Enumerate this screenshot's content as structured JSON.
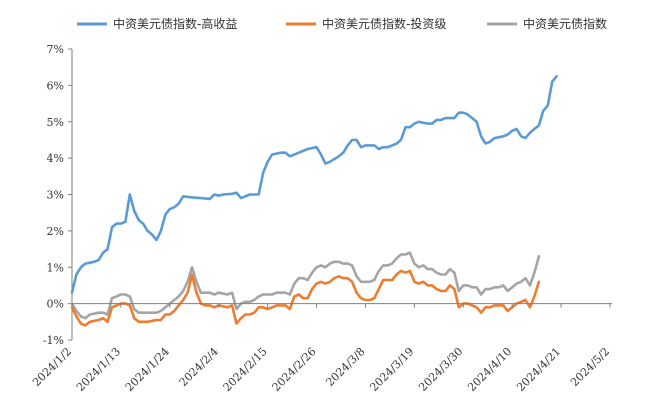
{
  "chart_data": {
    "type": "line",
    "title": "",
    "xlabel": "",
    "ylabel": "",
    "ylim": [
      -1,
      7
    ],
    "y_ticks": [
      -1,
      0,
      1,
      2,
      3,
      4,
      5,
      6,
      7
    ],
    "y_tick_labels": [
      "-1%",
      "0%",
      "1%",
      "2%",
      "3%",
      "4%",
      "5%",
      "6%",
      "7%"
    ],
    "x_tick_labels": [
      "2024/1/2",
      "2024/1/13",
      "2024/1/24",
      "2024/2/4",
      "2024/2/15",
      "2024/2/26",
      "2024/3/8",
      "2024/3/19",
      "2024/3/30",
      "2024/4/10",
      "2024/4/21",
      "2024/5/2"
    ],
    "x_range_days": [
      0,
      121
    ],
    "grid": false,
    "legend_position": "top",
    "series": [
      {
        "name": "中资美元债指数-高收益",
        "color": "#5b9bd5",
        "points": [
          [
            0,
            0.3
          ],
          [
            1,
            0.8
          ],
          [
            2,
            1.0
          ],
          [
            3,
            1.1
          ],
          [
            5,
            1.15
          ],
          [
            6,
            1.2
          ],
          [
            7,
            1.4
          ],
          [
            8,
            1.5
          ],
          [
            9,
            2.1
          ],
          [
            10,
            2.2
          ],
          [
            11,
            2.2
          ],
          [
            12,
            2.25
          ],
          [
            13,
            3.0
          ],
          [
            14,
            2.55
          ],
          [
            15,
            2.3
          ],
          [
            16,
            2.2
          ],
          [
            17,
            2.0
          ],
          [
            18,
            1.9
          ],
          [
            19,
            1.75
          ],
          [
            20,
            2.0
          ],
          [
            21,
            2.45
          ],
          [
            22,
            2.6
          ],
          [
            23,
            2.65
          ],
          [
            24,
            2.75
          ],
          [
            25,
            2.95
          ],
          [
            27,
            2.92
          ],
          [
            29,
            2.9
          ],
          [
            31,
            2.88
          ],
          [
            32,
            3.0
          ],
          [
            33,
            2.97
          ],
          [
            34,
            3.0
          ],
          [
            36,
            3.02
          ],
          [
            37,
            3.05
          ],
          [
            38,
            2.9
          ],
          [
            39,
            2.95
          ],
          [
            40,
            3.0
          ],
          [
            42,
            3.0
          ],
          [
            43,
            3.6
          ],
          [
            44,
            3.9
          ],
          [
            45,
            4.1
          ],
          [
            47,
            4.15
          ],
          [
            48,
            4.15
          ],
          [
            49,
            4.05
          ],
          [
            51,
            4.15
          ],
          [
            53,
            4.25
          ],
          [
            55,
            4.3
          ],
          [
            56,
            4.1
          ],
          [
            57,
            3.85
          ],
          [
            58,
            3.9
          ],
          [
            60,
            4.05
          ],
          [
            61,
            4.15
          ],
          [
            62,
            4.35
          ],
          [
            63,
            4.5
          ],
          [
            64,
            4.5
          ],
          [
            65,
            4.3
          ],
          [
            66,
            4.35
          ],
          [
            68,
            4.35
          ],
          [
            69,
            4.25
          ],
          [
            70,
            4.3
          ],
          [
            71,
            4.3
          ],
          [
            72,
            4.35
          ],
          [
            73,
            4.4
          ],
          [
            74,
            4.5
          ],
          [
            75,
            4.85
          ],
          [
            76,
            4.85
          ],
          [
            77,
            4.95
          ],
          [
            78,
            5.0
          ],
          [
            80,
            4.95
          ],
          [
            81,
            4.95
          ],
          [
            82,
            5.05
          ],
          [
            83,
            5.05
          ],
          [
            84,
            5.1
          ],
          [
            86,
            5.1
          ],
          [
            87,
            5.25
          ],
          [
            88,
            5.25
          ],
          [
            89,
            5.2
          ],
          [
            90,
            5.1
          ],
          [
            91,
            5.0
          ],
          [
            92,
            4.6
          ],
          [
            93,
            4.4
          ],
          [
            94,
            4.45
          ],
          [
            95,
            4.55
          ],
          [
            97,
            4.6
          ],
          [
            98,
            4.65
          ],
          [
            99,
            4.75
          ],
          [
            100,
            4.8
          ],
          [
            101,
            4.6
          ],
          [
            102,
            4.55
          ],
          [
            103,
            4.7
          ],
          [
            104,
            4.8
          ],
          [
            105,
            4.9
          ],
          [
            106,
            5.3
          ],
          [
            107,
            5.45
          ],
          [
            108,
            6.1
          ],
          [
            109,
            6.25
          ]
        ]
      },
      {
        "name": "中资美元债指数-投资级",
        "color": "#ed7d31",
        "points": [
          [
            0,
            -0.1
          ],
          [
            1,
            -0.35
          ],
          [
            2,
            -0.55
          ],
          [
            3,
            -0.6
          ],
          [
            4,
            -0.5
          ],
          [
            6,
            -0.45
          ],
          [
            7,
            -0.4
          ],
          [
            8,
            -0.5
          ],
          [
            9,
            -0.1
          ],
          [
            10,
            -0.05
          ],
          [
            11,
            0.0
          ],
          [
            12,
            0.0
          ],
          [
            13,
            -0.05
          ],
          [
            14,
            -0.4
          ],
          [
            15,
            -0.5
          ],
          [
            17,
            -0.5
          ],
          [
            19,
            -0.45
          ],
          [
            20,
            -0.45
          ],
          [
            21,
            -0.3
          ],
          [
            22,
            -0.3
          ],
          [
            23,
            -0.2
          ],
          [
            24,
            -0.05
          ],
          [
            25,
            0.1
          ],
          [
            26,
            0.3
          ],
          [
            27,
            0.8
          ],
          [
            28,
            0.3
          ],
          [
            29,
            0.0
          ],
          [
            30,
            -0.05
          ],
          [
            31,
            -0.05
          ],
          [
            32,
            -0.1
          ],
          [
            33,
            -0.05
          ],
          [
            35,
            -0.1
          ],
          [
            36,
            -0.05
          ],
          [
            37,
            -0.55
          ],
          [
            38,
            -0.4
          ],
          [
            39,
            -0.3
          ],
          [
            40,
            -0.3
          ],
          [
            41,
            -0.25
          ],
          [
            42,
            -0.1
          ],
          [
            43,
            -0.1
          ],
          [
            44,
            -0.15
          ],
          [
            45,
            -0.1
          ],
          [
            46,
            -0.05
          ],
          [
            47,
            -0.05
          ],
          [
            48,
            -0.05
          ],
          [
            49,
            -0.15
          ],
          [
            50,
            0.2
          ],
          [
            51,
            0.25
          ],
          [
            52,
            0.15
          ],
          [
            53,
            0.15
          ],
          [
            54,
            0.4
          ],
          [
            55,
            0.55
          ],
          [
            56,
            0.6
          ],
          [
            57,
            0.55
          ],
          [
            58,
            0.6
          ],
          [
            59,
            0.7
          ],
          [
            60,
            0.75
          ],
          [
            61,
            0.7
          ],
          [
            62,
            0.7
          ],
          [
            63,
            0.6
          ],
          [
            64,
            0.3
          ],
          [
            65,
            0.15
          ],
          [
            66,
            0.1
          ],
          [
            67,
            0.1
          ],
          [
            68,
            0.15
          ],
          [
            69,
            0.4
          ],
          [
            70,
            0.65
          ],
          [
            71,
            0.65
          ],
          [
            72,
            0.65
          ],
          [
            73,
            0.8
          ],
          [
            74,
            0.9
          ],
          [
            75,
            0.85
          ],
          [
            76,
            0.9
          ],
          [
            77,
            0.6
          ],
          [
            78,
            0.55
          ],
          [
            79,
            0.6
          ],
          [
            80,
            0.5
          ],
          [
            81,
            0.5
          ],
          [
            82,
            0.4
          ],
          [
            83,
            0.35
          ],
          [
            84,
            0.35
          ],
          [
            85,
            0.5
          ],
          [
            86,
            0.4
          ],
          [
            87,
            -0.1
          ],
          [
            88,
            0.0
          ],
          [
            89,
            0.0
          ],
          [
            90,
            -0.05
          ],
          [
            91,
            -0.1
          ],
          [
            92,
            -0.25
          ],
          [
            93,
            -0.1
          ],
          [
            94,
            -0.1
          ],
          [
            95,
            -0.05
          ],
          [
            96,
            -0.05
          ],
          [
            97,
            -0.05
          ],
          [
            98,
            -0.2
          ],
          [
            99,
            -0.1
          ],
          [
            100,
            0.0
          ],
          [
            101,
            0.05
          ],
          [
            102,
            0.1
          ],
          [
            103,
            -0.1
          ],
          [
            104,
            0.2
          ],
          [
            105,
            0.6
          ]
        ]
      },
      {
        "name": "中资美元债指数",
        "color": "#a5a5a5",
        "points": [
          [
            0,
            0.0
          ],
          [
            1,
            -0.2
          ],
          [
            2,
            -0.35
          ],
          [
            3,
            -0.4
          ],
          [
            4,
            -0.3
          ],
          [
            6,
            -0.25
          ],
          [
            7,
            -0.25
          ],
          [
            8,
            -0.3
          ],
          [
            9,
            0.15
          ],
          [
            10,
            0.2
          ],
          [
            11,
            0.25
          ],
          [
            12,
            0.25
          ],
          [
            13,
            0.2
          ],
          [
            14,
            -0.15
          ],
          [
            15,
            -0.25
          ],
          [
            17,
            -0.25
          ],
          [
            19,
            -0.25
          ],
          [
            20,
            -0.2
          ],
          [
            21,
            -0.1
          ],
          [
            22,
            0.0
          ],
          [
            23,
            0.1
          ],
          [
            24,
            0.2
          ],
          [
            25,
            0.35
          ],
          [
            26,
            0.6
          ],
          [
            27,
            1.0
          ],
          [
            28,
            0.6
          ],
          [
            29,
            0.3
          ],
          [
            30,
            0.3
          ],
          [
            31,
            0.3
          ],
          [
            32,
            0.25
          ],
          [
            33,
            0.3
          ],
          [
            35,
            0.25
          ],
          [
            36,
            0.3
          ],
          [
            37,
            -0.15
          ],
          [
            38,
            0.0
          ],
          [
            39,
            0.05
          ],
          [
            40,
            0.05
          ],
          [
            41,
            0.1
          ],
          [
            42,
            0.2
          ],
          [
            43,
            0.25
          ],
          [
            44,
            0.25
          ],
          [
            45,
            0.25
          ],
          [
            46,
            0.3
          ],
          [
            47,
            0.3
          ],
          [
            48,
            0.3
          ],
          [
            49,
            0.25
          ],
          [
            50,
            0.55
          ],
          [
            51,
            0.7
          ],
          [
            52,
            0.7
          ],
          [
            53,
            0.65
          ],
          [
            54,
            0.85
          ],
          [
            55,
            1.0
          ],
          [
            56,
            1.05
          ],
          [
            57,
            1.0
          ],
          [
            58,
            1.1
          ],
          [
            59,
            1.15
          ],
          [
            60,
            1.15
          ],
          [
            61,
            1.1
          ],
          [
            62,
            1.1
          ],
          [
            63,
            1.05
          ],
          [
            64,
            0.75
          ],
          [
            65,
            0.6
          ],
          [
            66,
            0.6
          ],
          [
            67,
            0.6
          ],
          [
            68,
            0.65
          ],
          [
            69,
            0.9
          ],
          [
            70,
            1.05
          ],
          [
            71,
            1.05
          ],
          [
            72,
            1.1
          ],
          [
            73,
            1.25
          ],
          [
            74,
            1.35
          ],
          [
            75,
            1.35
          ],
          [
            76,
            1.4
          ],
          [
            77,
            1.1
          ],
          [
            78,
            1.0
          ],
          [
            79,
            1.05
          ],
          [
            80,
            0.95
          ],
          [
            81,
            0.95
          ],
          [
            82,
            0.85
          ],
          [
            83,
            0.8
          ],
          [
            84,
            0.8
          ],
          [
            85,
            0.95
          ],
          [
            86,
            0.85
          ],
          [
            87,
            0.35
          ],
          [
            88,
            0.5
          ],
          [
            89,
            0.5
          ],
          [
            90,
            0.45
          ],
          [
            91,
            0.45
          ],
          [
            92,
            0.25
          ],
          [
            93,
            0.4
          ],
          [
            94,
            0.4
          ],
          [
            95,
            0.45
          ],
          [
            96,
            0.45
          ],
          [
            97,
            0.5
          ],
          [
            98,
            0.35
          ],
          [
            99,
            0.45
          ],
          [
            100,
            0.55
          ],
          [
            101,
            0.6
          ],
          [
            102,
            0.7
          ],
          [
            103,
            0.5
          ],
          [
            104,
            0.85
          ],
          [
            105,
            1.3
          ]
        ]
      }
    ]
  }
}
